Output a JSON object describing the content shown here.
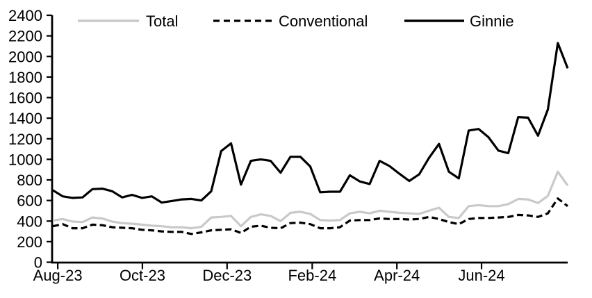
{
  "chart_data": {
    "type": "line",
    "title": "",
    "xlabel": "",
    "ylabel": "",
    "grid": false,
    "legend_position": "top",
    "x_axis": {
      "frequency": "weekly",
      "n_points": 53,
      "tick_labels": [
        "Aug-23",
        "Oct-23",
        "Dec-23",
        "Feb-24",
        "Apr-24",
        "Jun-24"
      ],
      "tick_week_positions": [
        0.5,
        9.05,
        17.6,
        26.2,
        34.75,
        43.3
      ]
    },
    "y_axis": {
      "min": 0,
      "max": 2400,
      "step": 200,
      "tick_labels": [
        "0",
        "200",
        "400",
        "600",
        "800",
        "1000",
        "1200",
        "1400",
        "1600",
        "1800",
        "2000",
        "2200",
        "2400"
      ]
    },
    "series": [
      {
        "name": "Total",
        "color": "#c9c9c9",
        "style": "solid",
        "values": [
          405,
          420,
          395,
          390,
          435,
          425,
          395,
          380,
          375,
          365,
          355,
          350,
          340,
          340,
          330,
          345,
          435,
          440,
          450,
          350,
          440,
          465,
          450,
          400,
          480,
          490,
          470,
          410,
          405,
          410,
          475,
          490,
          475,
          500,
          490,
          480,
          475,
          470,
          500,
          530,
          440,
          430,
          545,
          555,
          545,
          545,
          565,
          615,
          610,
          575,
          645,
          880,
          745
        ]
      },
      {
        "name": "Conventional",
        "color": "#000000",
        "style": "dashed",
        "values": [
          350,
          370,
          330,
          330,
          365,
          360,
          340,
          335,
          330,
          315,
          310,
          300,
          295,
          295,
          275,
          290,
          310,
          315,
          320,
          285,
          345,
          355,
          335,
          330,
          380,
          385,
          370,
          330,
          330,
          340,
          405,
          410,
          410,
          425,
          420,
          420,
          415,
          420,
          440,
          420,
          390,
          370,
          420,
          430,
          430,
          435,
          440,
          460,
          455,
          440,
          475,
          620,
          545
        ]
      },
      {
        "name": "Ginnie",
        "color": "#000000",
        "style": "solid",
        "values": [
          700,
          640,
          625,
          630,
          710,
          715,
          690,
          630,
          655,
          625,
          640,
          580,
          595,
          610,
          615,
          600,
          690,
          1080,
          1155,
          755,
          985,
          1000,
          985,
          870,
          1025,
          1025,
          930,
          680,
          685,
          685,
          845,
          785,
          760,
          985,
          935,
          860,
          790,
          855,
          1015,
          1150,
          880,
          815,
          1280,
          1295,
          1215,
          1085,
          1060,
          1410,
          1405,
          1230,
          1485,
          2130,
          1885
        ]
      }
    ]
  }
}
